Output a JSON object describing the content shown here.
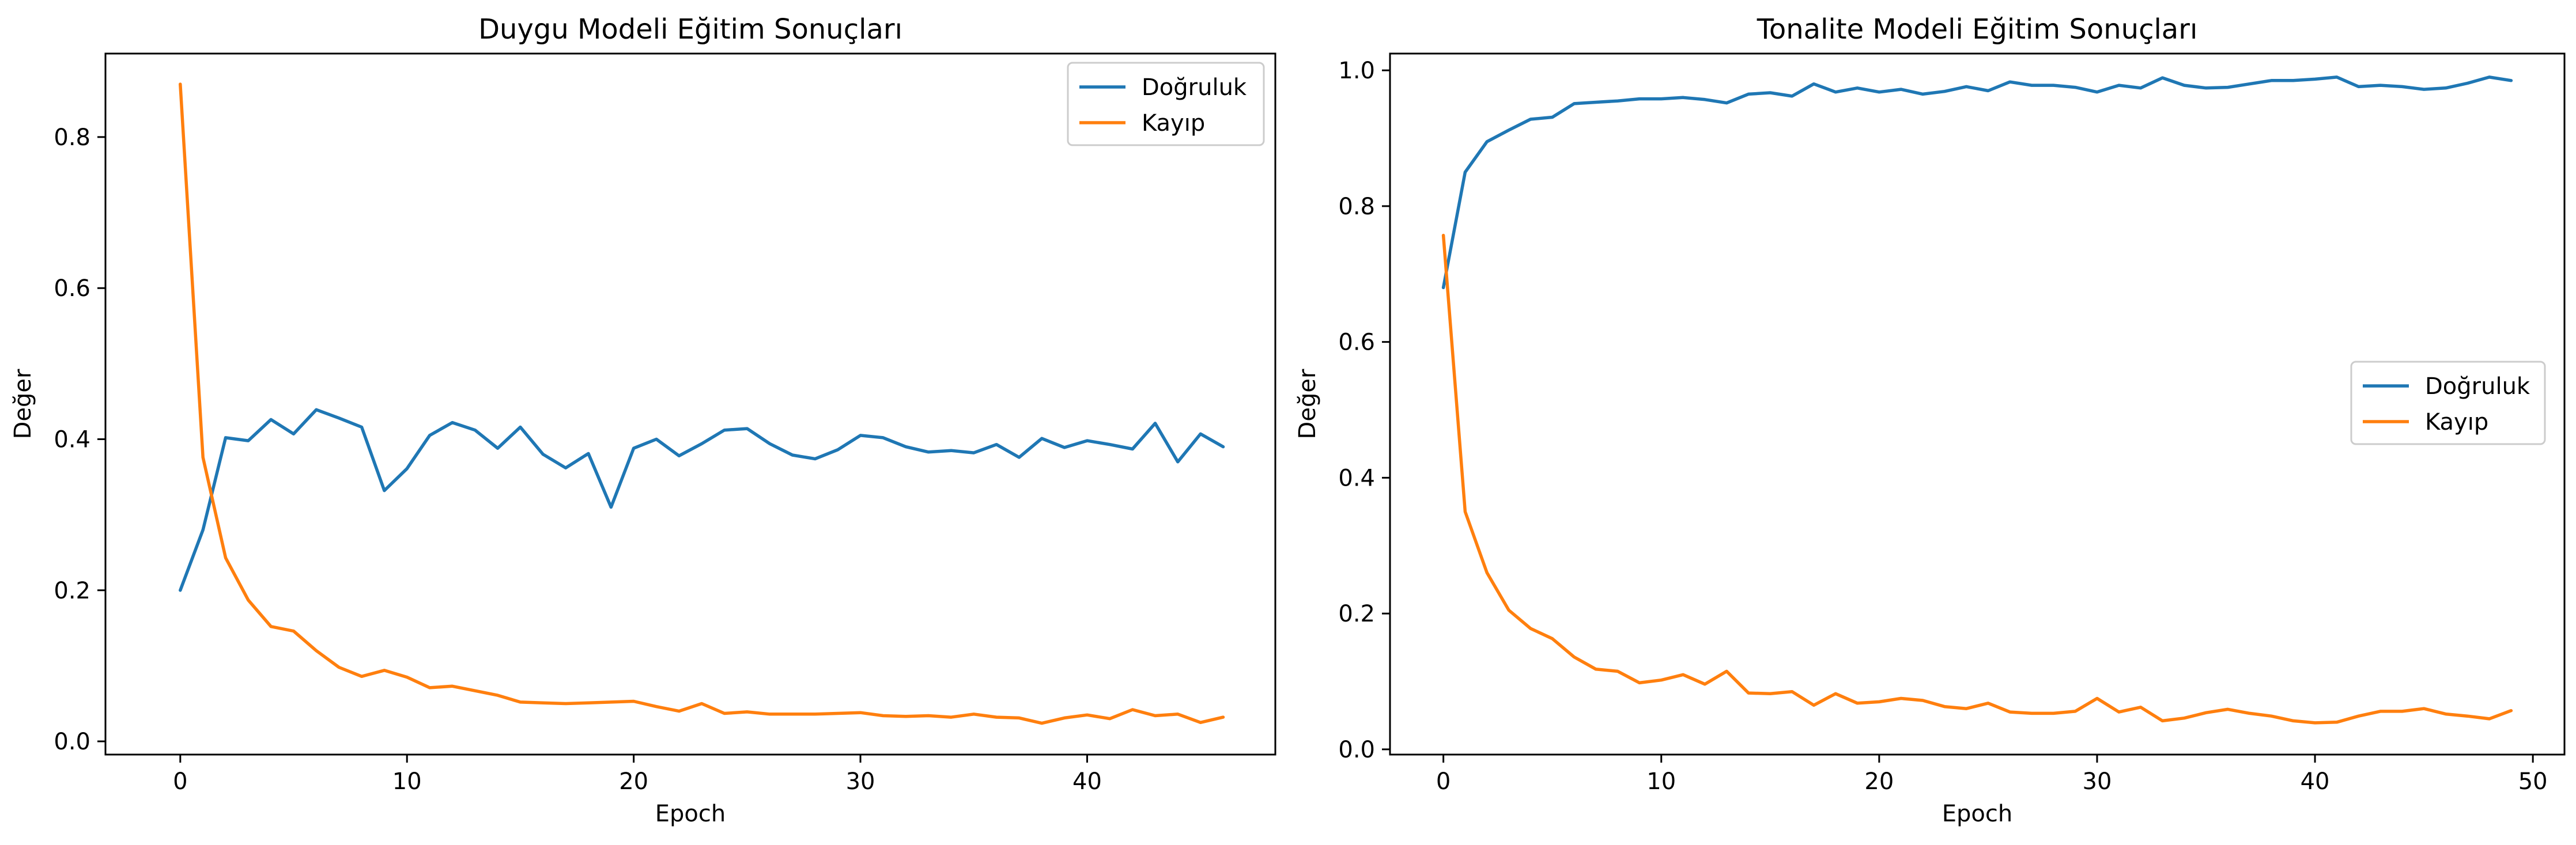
{
  "chart_data": [
    {
      "type": "line",
      "title": "Duygu Modeli Eğitim Sonuçları",
      "xlabel": "Epoch",
      "ylabel": "Değer",
      "xlim": [
        -3.3,
        48.3
      ],
      "ylim": [
        -0.0175,
        0.9105
      ],
      "xticks": [
        0,
        10,
        20,
        30,
        40
      ],
      "yticks": [
        0.0,
        0.2,
        0.4,
        0.6,
        0.8
      ],
      "ytick_labels": [
        "0.0",
        "0.2",
        "0.4",
        "0.6",
        "0.8"
      ],
      "legend": "top-right",
      "series": [
        {
          "name": "Doğruluk",
          "color": "#1f77b4",
          "x": [
            0,
            1,
            2,
            3,
            4,
            5,
            6,
            7,
            8,
            9,
            10,
            11,
            12,
            13,
            14,
            15,
            16,
            17,
            18,
            19,
            20,
            21,
            22,
            23,
            24,
            25,
            26,
            27,
            28,
            29,
            30,
            31,
            32,
            33,
            34,
            35,
            36,
            37,
            38,
            39,
            40,
            41,
            42,
            43,
            44,
            45,
            46
          ],
          "values": [
            0.2,
            0.28,
            0.402,
            0.398,
            0.426,
            0.407,
            0.439,
            0.428,
            0.416,
            0.332,
            0.361,
            0.405,
            0.422,
            0.412,
            0.388,
            0.416,
            0.38,
            0.362,
            0.381,
            0.31,
            0.388,
            0.4,
            0.378,
            0.394,
            0.412,
            0.414,
            0.394,
            0.379,
            0.374,
            0.386,
            0.405,
            0.402,
            0.39,
            0.383,
            0.385,
            0.382,
            0.393,
            0.376,
            0.401,
            0.389,
            0.398,
            0.393,
            0.387,
            0.421,
            0.37,
            0.407,
            0.39
          ]
        },
        {
          "name": "Kayıp",
          "color": "#ff7f0e",
          "x": [
            0,
            1,
            2,
            3,
            4,
            5,
            6,
            7,
            8,
            9,
            10,
            11,
            12,
            13,
            14,
            15,
            16,
            17,
            18,
            19,
            20,
            21,
            22,
            23,
            24,
            25,
            26,
            27,
            28,
            29,
            30,
            31,
            32,
            33,
            34,
            35,
            36,
            37,
            38,
            39,
            40,
            41,
            42,
            43,
            44,
            45,
            46
          ],
          "values": [
            0.87,
            0.376,
            0.243,
            0.187,
            0.152,
            0.146,
            0.12,
            0.098,
            0.086,
            0.094,
            0.085,
            0.071,
            0.073,
            0.067,
            0.061,
            0.052,
            0.051,
            0.05,
            0.051,
            0.052,
            0.053,
            0.046,
            0.04,
            0.05,
            0.037,
            0.039,
            0.036,
            0.036,
            0.036,
            0.037,
            0.038,
            0.034,
            0.033,
            0.034,
            0.032,
            0.036,
            0.032,
            0.031,
            0.024,
            0.031,
            0.035,
            0.03,
            0.042,
            0.034,
            0.036,
            0.025,
            0.032
          ]
        }
      ]
    },
    {
      "type": "line",
      "title": "Tonalite Modeli Eğitim Sonuçları",
      "xlabel": "Epoch",
      "ylabel": "Değer",
      "xlim": [
        -2.45,
        51.45
      ],
      "ylim": [
        -0.0077,
        1.0247
      ],
      "xticks": [
        0,
        10,
        20,
        30,
        40,
        50
      ],
      "yticks": [
        0.0,
        0.2,
        0.4,
        0.6,
        0.8,
        1.0
      ],
      "ytick_labels": [
        "0.0",
        "0.2",
        "0.4",
        "0.6",
        "0.8",
        "1.0"
      ],
      "legend": "center-right",
      "series": [
        {
          "name": "Doğruluk",
          "color": "#1f77b4",
          "x": [
            0,
            1,
            2,
            3,
            4,
            5,
            6,
            7,
            8,
            9,
            10,
            11,
            12,
            13,
            14,
            15,
            16,
            17,
            18,
            19,
            20,
            21,
            22,
            23,
            24,
            25,
            26,
            27,
            28,
            29,
            30,
            31,
            32,
            33,
            34,
            35,
            36,
            37,
            38,
            39,
            40,
            41,
            42,
            43,
            44,
            45,
            46,
            47,
            48,
            49
          ],
          "values": [
            0.68,
            0.85,
            0.895,
            0.912,
            0.928,
            0.931,
            0.951,
            0.953,
            0.955,
            0.958,
            0.958,
            0.96,
            0.957,
            0.952,
            0.965,
            0.967,
            0.962,
            0.98,
            0.968,
            0.974,
            0.968,
            0.972,
            0.965,
            0.969,
            0.976,
            0.97,
            0.983,
            0.978,
            0.978,
            0.975,
            0.968,
            0.978,
            0.974,
            0.989,
            0.978,
            0.974,
            0.975,
            0.98,
            0.985,
            0.985,
            0.987,
            0.99,
            0.976,
            0.978,
            0.976,
            0.972,
            0.974,
            0.981,
            0.99,
            0.985
          ]
        },
        {
          "name": "Kayıp",
          "color": "#ff7f0e",
          "x": [
            0,
            1,
            2,
            3,
            4,
            5,
            6,
            7,
            8,
            9,
            10,
            11,
            12,
            13,
            14,
            15,
            16,
            17,
            18,
            19,
            20,
            21,
            22,
            23,
            24,
            25,
            26,
            27,
            28,
            29,
            30,
            31,
            32,
            33,
            34,
            35,
            36,
            37,
            38,
            39,
            40,
            41,
            42,
            43,
            44,
            45,
            46,
            47,
            48,
            49
          ],
          "values": [
            0.757,
            0.35,
            0.26,
            0.205,
            0.178,
            0.163,
            0.136,
            0.118,
            0.115,
            0.098,
            0.102,
            0.11,
            0.096,
            0.115,
            0.083,
            0.082,
            0.085,
            0.065,
            0.082,
            0.068,
            0.07,
            0.075,
            0.072,
            0.063,
            0.06,
            0.068,
            0.055,
            0.053,
            0.053,
            0.056,
            0.075,
            0.055,
            0.062,
            0.042,
            0.046,
            0.054,
            0.059,
            0.053,
            0.049,
            0.042,
            0.039,
            0.04,
            0.049,
            0.056,
            0.056,
            0.06,
            0.052,
            0.049,
            0.045,
            0.057
          ]
        }
      ]
    }
  ]
}
